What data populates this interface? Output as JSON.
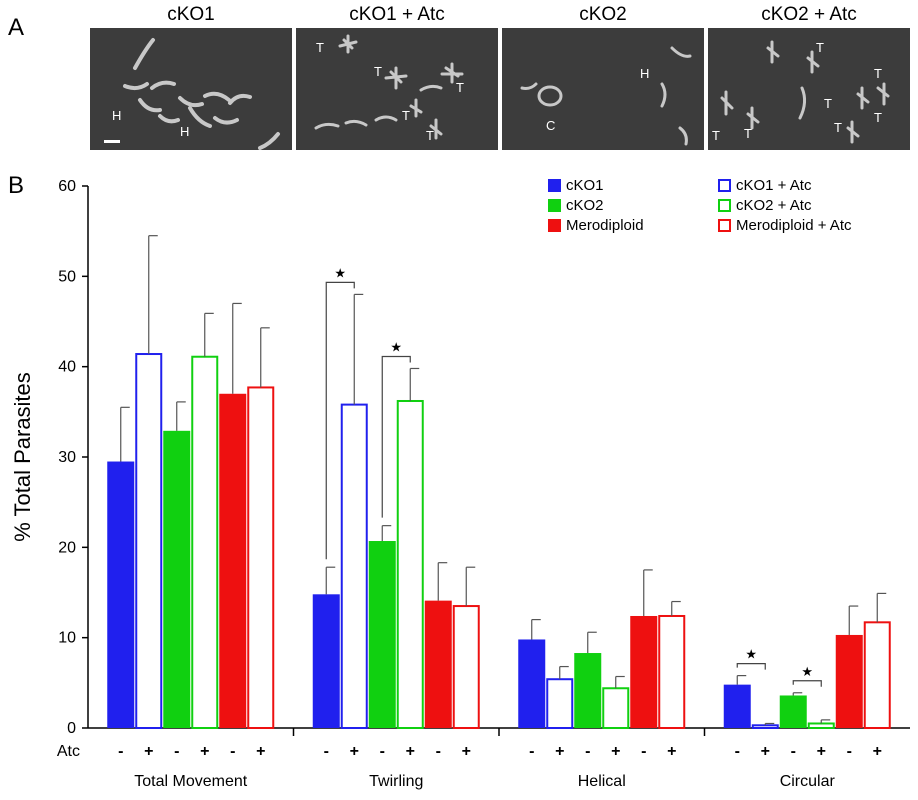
{
  "panel_a": {
    "letter": "A",
    "images": [
      {
        "title": "cKO1",
        "labels": [
          "H",
          "H"
        ],
        "has_scale_bar": true
      },
      {
        "title": "cKO1 + Atc",
        "labels": [
          "T",
          "T",
          "T",
          "T",
          "T"
        ]
      },
      {
        "title": "cKO2",
        "labels": [
          "C",
          "H"
        ]
      },
      {
        "title": "cKO2 + Atc",
        "labels": [
          "T",
          "T",
          "T",
          "T",
          "T",
          "T",
          "T"
        ]
      }
    ]
  },
  "panel_b": {
    "letter": "B"
  },
  "chart_data": {
    "type": "bar",
    "title": "",
    "ylabel": "% Total Parasites",
    "xlabel": "",
    "ylim": [
      0,
      60
    ],
    "yticks": [
      0,
      10,
      20,
      30,
      40,
      50,
      60
    ],
    "grid": false,
    "legend_position": "top-right",
    "categories": [
      "Total Movement",
      "Twirling",
      "Helical",
      "Circular"
    ],
    "atc_row_label": "Atc",
    "atc_signs": [
      "-",
      "+",
      "-",
      "+",
      "-",
      "+"
    ],
    "series": [
      {
        "name": "cKO1",
        "color": "#2020ee",
        "fill": "solid",
        "values": [
          29.5,
          14.8,
          9.8,
          4.8
        ],
        "errors": [
          6.0,
          3.0,
          2.2,
          1.0
        ]
      },
      {
        "name": "cKO1 + Atc",
        "color": "#2020ee",
        "fill": "open",
        "values": [
          41.4,
          35.8,
          5.4,
          0.3
        ],
        "errors": [
          13.1,
          12.2,
          1.4,
          0.2
        ]
      },
      {
        "name": "cKO2",
        "color": "#10d010",
        "fill": "solid",
        "values": [
          32.9,
          20.7,
          8.3,
          3.6
        ],
        "errors": [
          3.2,
          1.7,
          2.3,
          0.3
        ]
      },
      {
        "name": "cKO2 + Atc",
        "color": "#10d010",
        "fill": "open",
        "values": [
          41.1,
          36.2,
          4.4,
          0.5
        ],
        "errors": [
          4.8,
          3.6,
          1.3,
          0.4
        ]
      },
      {
        "name": "Merodiploid",
        "color": "#ee1010",
        "fill": "solid",
        "values": [
          37.0,
          14.1,
          12.4,
          10.3
        ],
        "errors": [
          10.0,
          4.2,
          5.1,
          3.2
        ]
      },
      {
        "name": "Merodiploid + Atc",
        "color": "#ee1010",
        "fill": "open",
        "values": [
          37.7,
          13.5,
          12.4,
          11.7
        ],
        "errors": [
          6.6,
          4.3,
          1.6,
          3.2
        ]
      }
    ],
    "significance": [
      {
        "category": "Twirling",
        "pair": [
          0,
          1
        ],
        "symbol": "★"
      },
      {
        "category": "Twirling",
        "pair": [
          2,
          3
        ],
        "symbol": "★"
      },
      {
        "category": "Circular",
        "pair": [
          0,
          1
        ],
        "symbol": "★"
      },
      {
        "category": "Circular",
        "pair": [
          2,
          3
        ],
        "symbol": "★"
      }
    ]
  }
}
